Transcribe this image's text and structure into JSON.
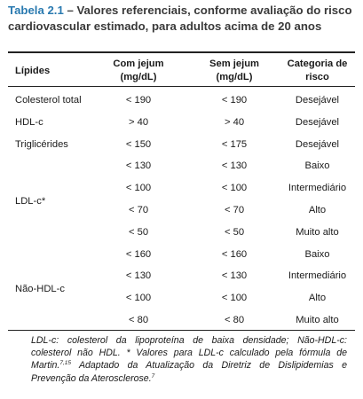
{
  "title": {
    "label": "Tabela 2.1",
    "dash": " – ",
    "description": "Valores referenciais, conforme avaliação do risco cardiovascular estimado, para adultos acima de 20 anos"
  },
  "table": {
    "headers": {
      "lipid": "Lípides",
      "fasting": [
        "Com jejum",
        "(mg/dL)"
      ],
      "non_fasting": [
        "Sem jejum",
        "(mg/dL)"
      ],
      "category": [
        "Categoria de",
        "risco"
      ]
    },
    "rows": [
      {
        "lipid": "Colesterol total",
        "fasting": "< 190",
        "non_fasting": "< 190",
        "category": "Desejável"
      },
      {
        "lipid": "HDL-c",
        "fasting": "> 40",
        "non_fasting": "> 40",
        "category": "Desejável"
      },
      {
        "lipid": "Triglicérides",
        "fasting": "< 150",
        "non_fasting": "< 175",
        "category": "Desejável"
      },
      {
        "lipid": "",
        "fasting": "< 130",
        "non_fasting": "< 130",
        "category": "Baixo"
      },
      {
        "lipid": "",
        "fasting": "< 100",
        "non_fasting": "< 100",
        "category": "Intermediário"
      },
      {
        "lipid": "",
        "fasting": "< 70",
        "non_fasting": "< 70",
        "category": "Alto"
      },
      {
        "lipid": "",
        "fasting": "< 50",
        "non_fasting": "< 50",
        "category": "Muito alto"
      },
      {
        "lipid": "",
        "fasting": "< 160",
        "non_fasting": "< 160",
        "category": "Baixo"
      },
      {
        "lipid": "",
        "fasting": "< 130",
        "non_fasting": "< 130",
        "category": "Intermediário"
      },
      {
        "lipid": "",
        "fasting": "< 100",
        "non_fasting": "< 100",
        "category": "Alto"
      },
      {
        "lipid": "",
        "fasting": "< 80",
        "non_fasting": "< 80",
        "category": "Muito alto"
      }
    ],
    "group_labels": {
      "ldl": "LDL-c*",
      "non_hdl": "Não-HDL-c"
    }
  },
  "footnote": {
    "text1": "LDL-c: colesterol da lipoproteína de baixa densidade; Não-HDL-c: colesterol não HDL. * Valores para LDL-c calculado pela fórmula de Martin.",
    "ref1": "7,15",
    "text2": " Adaptado da Atualização da Diretriz de Dislipidemias e Prevenção da Aterosclerose.",
    "ref2": "7"
  }
}
